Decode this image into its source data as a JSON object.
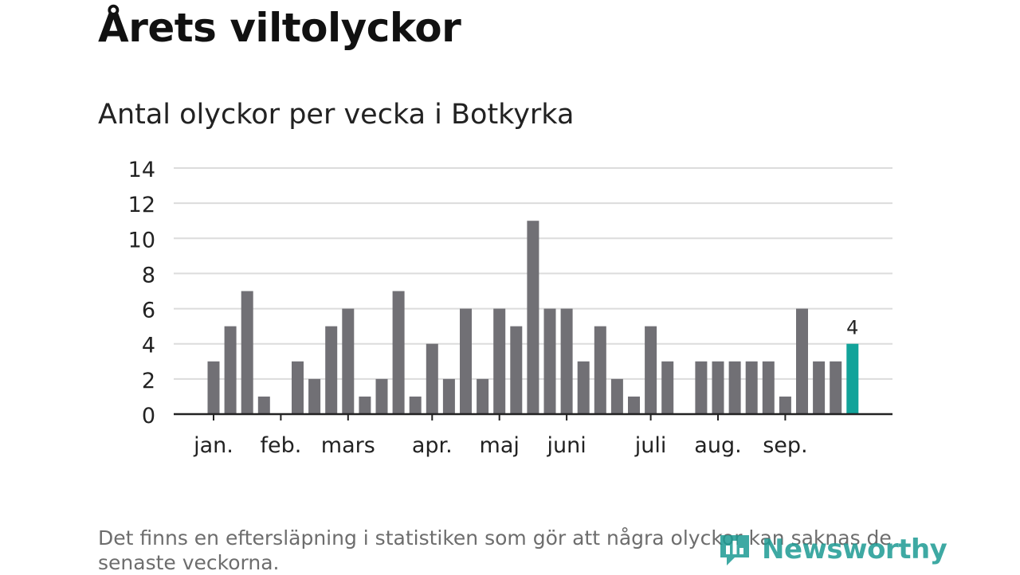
{
  "header": {
    "title": "Årets viltolyckor",
    "subtitle": "Antal olyckor per vecka i Botkyrka"
  },
  "footer": {
    "note": "Det finns en eftersläpning i statistiken som gör att några olyckor kan saknas de senaste veckorna.",
    "brand": "Newsworthy",
    "brand_icon": "newsworthy-logo-icon"
  },
  "colors": {
    "bar": "#717075",
    "highlight": "#12a39a",
    "grid": "#dcdcdc",
    "axis": "#222222",
    "brand": "#1d9b93"
  },
  "chart_data": {
    "type": "bar",
    "title": "Antal olyckor per vecka i Botkyrka",
    "xlabel": "",
    "ylabel": "",
    "ylim": [
      0,
      14
    ],
    "yticks": [
      "0",
      "2",
      "4",
      "6",
      "8",
      "10",
      "12",
      "14"
    ],
    "grid": true,
    "months": [
      {
        "label": "jan.",
        "week": 1
      },
      {
        "label": "feb.",
        "week": 5
      },
      {
        "label": "mars",
        "week": 9
      },
      {
        "label": "apr.",
        "week": 14
      },
      {
        "label": "maj",
        "week": 18
      },
      {
        "label": "juni",
        "week": 22
      },
      {
        "label": "juli",
        "week": 27
      },
      {
        "label": "aug.",
        "week": 31
      },
      {
        "label": "sep.",
        "week": 35
      }
    ],
    "weeks": [
      1,
      2,
      3,
      4,
      5,
      6,
      7,
      8,
      9,
      10,
      11,
      12,
      13,
      14,
      15,
      16,
      17,
      18,
      19,
      20,
      21,
      22,
      23,
      24,
      25,
      26,
      27,
      28,
      29,
      30,
      31,
      32,
      33,
      34,
      35,
      36,
      37,
      38,
      39
    ],
    "values": [
      3,
      5,
      7,
      1,
      0,
      3,
      2,
      5,
      6,
      1,
      2,
      7,
      1,
      4,
      2,
      6,
      2,
      6,
      5,
      11,
      6,
      6,
      3,
      5,
      2,
      1,
      5,
      3,
      0,
      3,
      3,
      3,
      3,
      3,
      1,
      6,
      3,
      3,
      4
    ],
    "highlight_week": 39,
    "highlight_label": "4"
  }
}
